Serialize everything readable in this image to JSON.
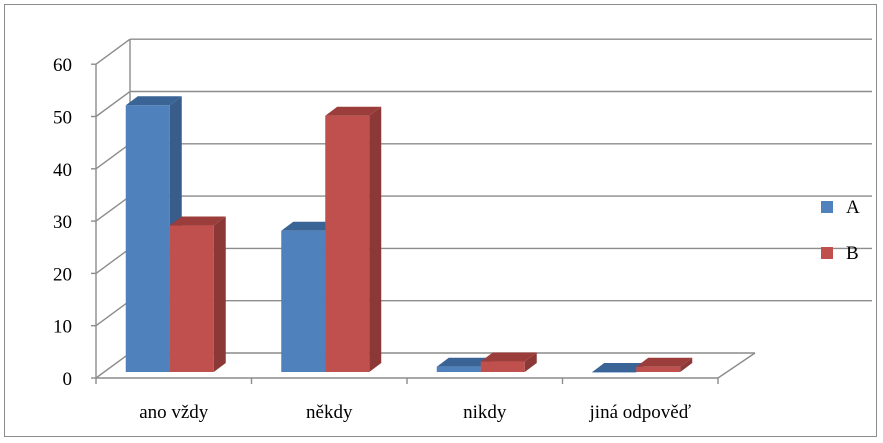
{
  "chart_data": {
    "type": "bar",
    "style": "3d-clustered-column",
    "categories": [
      "ano vždy",
      "někdy",
      "nikdy",
      "jiná odpověď"
    ],
    "series": [
      {
        "name": "A",
        "values": [
          51,
          27,
          1,
          0
        ],
        "color": "#4F81BD",
        "side_color": "#385D8A",
        "top_color": "#3A6496"
      },
      {
        "name": "B",
        "values": [
          28,
          49,
          2,
          1
        ],
        "color": "#C0504D",
        "side_color": "#8C3836",
        "top_color": "#9B3D3A"
      }
    ],
    "yticks": [
      0,
      10,
      20,
      30,
      40,
      50,
      60
    ],
    "ylim": [
      0,
      60
    ],
    "grid": true,
    "legend_position": "right",
    "title": "",
    "xlabel": "",
    "ylabel": ""
  }
}
